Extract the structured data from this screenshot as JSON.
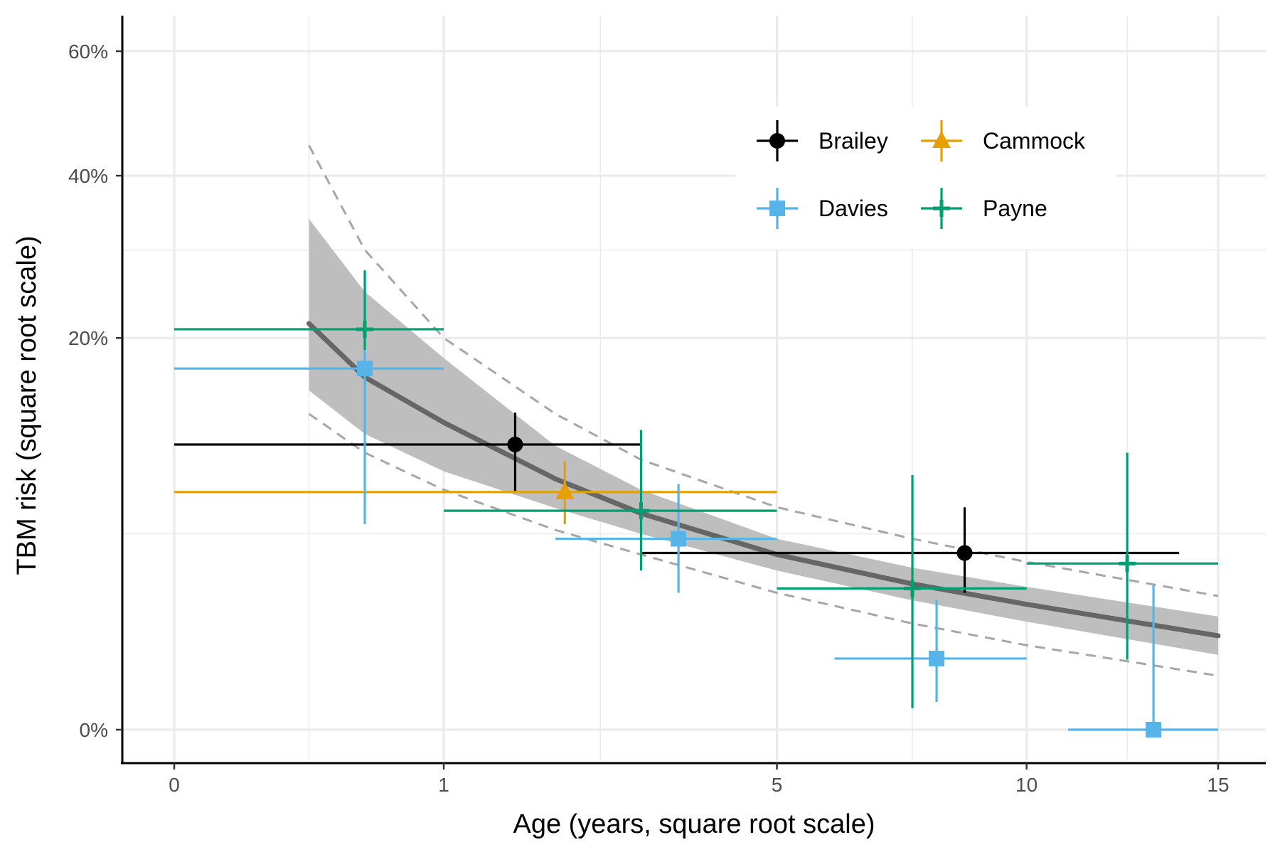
{
  "chart_data": {
    "type": "scatter",
    "title": "",
    "xlabel": "Age (years, square root scale)",
    "ylabel": "TBM risk (square root scale)",
    "x_scale": "sqrt",
    "y_scale": "sqrt",
    "xlim": [
      0,
      15
    ],
    "ylim": [
      0,
      0.6
    ],
    "x_ticks": [
      0,
      1,
      5,
      10,
      15
    ],
    "x_tick_labels": [
      "0",
      "1",
      "5",
      "10",
      "15"
    ],
    "y_ticks": [
      0,
      0.2,
      0.4,
      0.6
    ],
    "y_tick_labels": [
      "0%",
      "20%",
      "40%",
      "60%"
    ],
    "x_minor_ticks": [
      0.25,
      2.5,
      7.5,
      12.5
    ],
    "y_minor_ticks": [
      0.05,
      0.3
    ],
    "grid": true,
    "legend_position": "top-right",
    "series": [
      {
        "name": "Brailey",
        "color": "#000000",
        "marker": "circle",
        "points": [
          {
            "x": 1.6,
            "y": 0.106,
            "xmin": 0,
            "xmax": 3,
            "ymin": 0.073,
            "ymax": 0.131
          },
          {
            "x": 8.6,
            "y": 0.0407,
            "xmin": 3,
            "xmax": 13.9,
            "ymin": 0.0244,
            "ymax": 0.0645
          }
        ]
      },
      {
        "name": "Cammock",
        "color": "#E69F00",
        "marker": "triangle",
        "points": [
          {
            "x": 2.1,
            "y": 0.0736,
            "xmin": 0,
            "xmax": 5,
            "ymin": 0.055,
            "ymax": 0.094
          }
        ]
      },
      {
        "name": "Davies",
        "color": "#56B4E9",
        "marker": "square",
        "points": [
          {
            "x": 0.5,
            "y": 0.17,
            "xmin": 0,
            "xmax": 1,
            "ymin": 0.055,
            "ymax": 0.274
          },
          {
            "x": 3.5,
            "y": 0.0475,
            "xmin": 2,
            "xmax": 5,
            "ymin": 0.0244,
            "ymax": 0.0787
          },
          {
            "x": 8,
            "y": 0.0066,
            "xmin": 6,
            "xmax": 10,
            "ymin": 0.001,
            "ymax": 0.022
          },
          {
            "x": 13.2,
            "y": 0,
            "xmin": 11,
            "xmax": 15,
            "ymin": 0,
            "ymax": 0.0274
          }
        ]
      },
      {
        "name": "Payne",
        "color": "#009E73",
        "marker": "plus",
        "points": [
          {
            "x": 0.5,
            "y": 0.209,
            "xmin": 0,
            "xmax": 1,
            "ymin": 0.188,
            "ymax": 0.275
          },
          {
            "x": 3,
            "y": 0.0625,
            "xmin": 1,
            "xmax": 5,
            "ymin": 0.033,
            "ymax": 0.117
          },
          {
            "x": 7.5,
            "y": 0.026,
            "xmin": 5,
            "xmax": 10,
            "ymin": 0.0006,
            "ymax": 0.0845
          },
          {
            "x": 12.5,
            "y": 0.036,
            "xmin": 10,
            "xmax": 15,
            "ymin": 0.0064,
            "ymax": 0.1
          }
        ]
      }
    ],
    "fit": {
      "line_color": "#666666",
      "band_color": "#bebebe",
      "prediction_color": "#a6a6a6",
      "x": [
        0.25,
        0.5,
        1,
        2,
        3,
        5,
        7.5,
        10,
        15
      ],
      "y": [
        0.215,
        0.162,
        0.123,
        0.082,
        0.061,
        0.04,
        0.0277,
        0.0205,
        0.0115
      ],
      "ci_lower": [
        0.15,
        0.114,
        0.087,
        0.064,
        0.05,
        0.033,
        0.0218,
        0.0152,
        0.0073
      ],
      "ci_upper": [
        0.34,
        0.25,
        0.18,
        0.105,
        0.075,
        0.0475,
        0.0342,
        0.0266,
        0.0167
      ],
      "pi_lower": [
        0.13,
        0.1,
        0.075,
        0.052,
        0.04,
        0.0244,
        0.0147,
        0.0093,
        0.0038
      ],
      "pi_upper": [
        0.445,
        0.3,
        0.2,
        0.13,
        0.095,
        0.0645,
        0.0475,
        0.0367,
        0.0233
      ]
    }
  }
}
